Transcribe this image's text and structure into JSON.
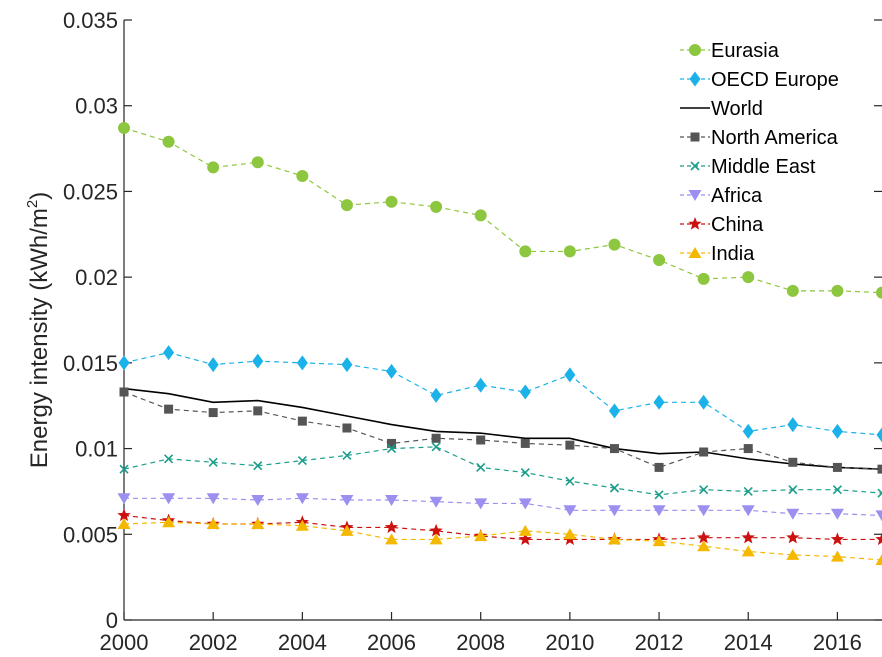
{
  "chart_data": {
    "type": "line",
    "title": "",
    "xlabel": "",
    "ylabel": "Energy intensity (kWh/m",
    "ylabel_sup": "2",
    "ylabel_tail": ")",
    "xlim": [
      2000,
      2017
    ],
    "ylim": [
      0,
      0.035
    ],
    "xticks": [
      "2000",
      "2002",
      "2004",
      "2006",
      "2008",
      "2010",
      "2012",
      "2014",
      "2016"
    ],
    "yticks": [
      "0",
      "0.005",
      "0.01",
      "0.015",
      "0.02",
      "0.025",
      "0.03",
      "0.035"
    ],
    "grid": false,
    "legend_position": "top-right",
    "x": [
      2000,
      2001,
      2002,
      2003,
      2004,
      2005,
      2006,
      2007,
      2008,
      2009,
      2010,
      2011,
      2012,
      2013,
      2014,
      2015,
      2016,
      2017
    ],
    "series": [
      {
        "name": "Eurasia",
        "color": "#8dc63f",
        "marker": "circle",
        "dash": "dashed",
        "values": [
          0.0287,
          0.0279,
          0.0264,
          0.0267,
          0.0259,
          0.0242,
          0.0244,
          0.0241,
          0.0236,
          0.0215,
          0.0215,
          0.0219,
          0.021,
          0.0199,
          0.02,
          0.0192,
          0.0192,
          0.0191
        ]
      },
      {
        "name": "OECD Europe",
        "color": "#1ab2e8",
        "marker": "diamond",
        "dash": "dashed",
        "values": [
          0.015,
          0.0156,
          0.0149,
          0.0151,
          0.015,
          0.0149,
          0.0145,
          0.0131,
          0.0137,
          0.0133,
          0.0143,
          0.0122,
          0.0127,
          0.0127,
          0.011,
          0.0114,
          0.011,
          0.0108
        ]
      },
      {
        "name": "World",
        "color": "#000000",
        "marker": "none",
        "dash": "solid",
        "values": [
          0.0135,
          0.0132,
          0.0127,
          0.0128,
          0.0124,
          0.0119,
          0.0114,
          0.011,
          0.0109,
          0.0106,
          0.0106,
          0.01,
          0.0097,
          0.0098,
          0.0094,
          0.0091,
          0.0089,
          0.0088
        ]
      },
      {
        "name": "North America",
        "color": "#555555",
        "marker": "square",
        "dash": "dashed",
        "values": [
          0.0133,
          0.0123,
          0.0121,
          0.0122,
          0.0116,
          0.0112,
          0.0103,
          0.0106,
          0.0105,
          0.0103,
          0.0102,
          0.01,
          0.0089,
          0.0098,
          0.01,
          0.0092,
          0.0089,
          0.0088
        ]
      },
      {
        "name": "Middle East",
        "color": "#1a9e8a",
        "marker": "x",
        "dash": "dashed",
        "values": [
          0.0088,
          0.0094,
          0.0092,
          0.009,
          0.0093,
          0.0096,
          0.01,
          0.0101,
          0.0089,
          0.0086,
          0.0081,
          0.0077,
          0.0073,
          0.0076,
          0.0075,
          0.0076,
          0.0076,
          0.0074
        ]
      },
      {
        "name": "Africa",
        "color": "#9b8fef",
        "marker": "triangle-down",
        "dash": "dashed",
        "values": [
          0.0071,
          0.0071,
          0.0071,
          0.007,
          0.0071,
          0.007,
          0.007,
          0.0069,
          0.0068,
          0.0068,
          0.0064,
          0.0064,
          0.0064,
          0.0064,
          0.0064,
          0.0062,
          0.0062,
          0.0061
        ]
      },
      {
        "name": "China",
        "color": "#cc1111",
        "marker": "star",
        "dash": "dashed",
        "values": [
          0.0061,
          0.0058,
          0.0056,
          0.0056,
          0.0057,
          0.0054,
          0.0054,
          0.0052,
          0.0049,
          0.0047,
          0.0047,
          0.0047,
          0.0047,
          0.0048,
          0.0048,
          0.0048,
          0.0047,
          0.0047
        ]
      },
      {
        "name": "India",
        "color": "#f5b800",
        "marker": "triangle-up",
        "dash": "dashed",
        "values": [
          0.0056,
          0.0057,
          0.0056,
          0.0056,
          0.0055,
          0.0052,
          0.0047,
          0.0047,
          0.0049,
          0.0052,
          0.005,
          0.0047,
          0.0046,
          0.0043,
          0.004,
          0.0038,
          0.0037,
          0.0035
        ]
      }
    ]
  }
}
